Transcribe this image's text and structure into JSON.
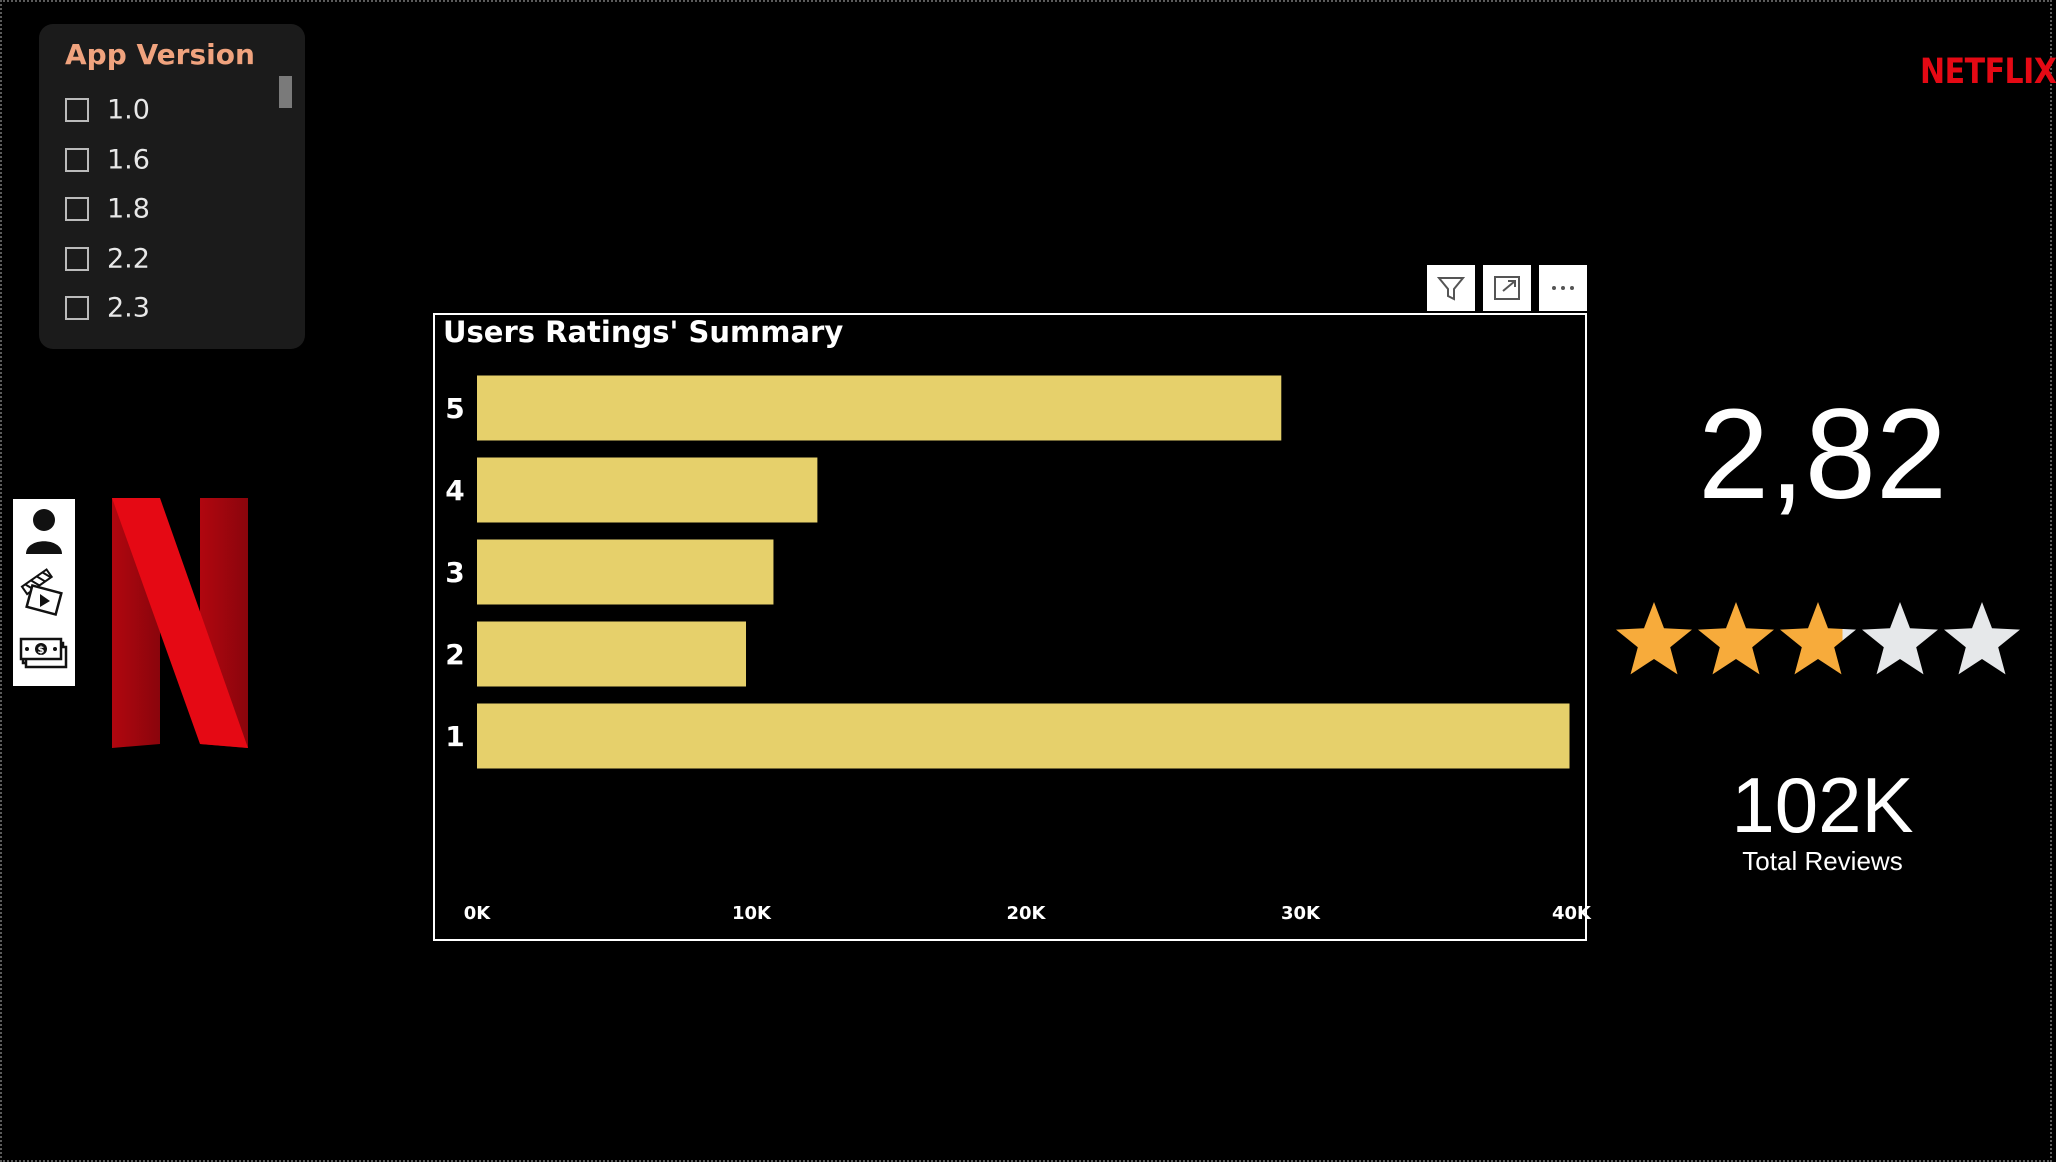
{
  "slicer": {
    "title": "App Version",
    "items": [
      {
        "label": "1.0",
        "checked": false
      },
      {
        "label": "1.6",
        "checked": false
      },
      {
        "label": "1.8",
        "checked": false
      },
      {
        "label": "2.2",
        "checked": false
      },
      {
        "label": "2.3",
        "checked": false
      }
    ]
  },
  "brand": {
    "wordmark": "NETFLIX",
    "color": "#e50914"
  },
  "nav": {
    "icons": [
      "person-icon",
      "clapperboard-icon",
      "money-icon"
    ]
  },
  "chart_toolbar": {
    "icons": [
      "filter-icon",
      "focus-mode-icon",
      "more-options-icon"
    ]
  },
  "chart_data": {
    "type": "bar",
    "orientation": "horizontal",
    "title": "Users Ratings' Summary",
    "categories": [
      "5",
      "4",
      "3",
      "2",
      "1"
    ],
    "values": [
      29300,
      12400,
      10800,
      9800,
      39800
    ],
    "xlim": [
      0,
      40000
    ],
    "xticks": [
      "0K",
      "10K",
      "20K",
      "30K",
      "40K"
    ],
    "xtick_values": [
      0,
      10000,
      20000,
      30000,
      40000
    ],
    "bar_color": "#e6d06b",
    "grid": false,
    "xlabel": "",
    "ylabel": ""
  },
  "kpi": {
    "average_rating": "2,82",
    "rating_value": 2.82,
    "max_rating": 5,
    "star_filled_color": "#f7ab3b",
    "star_empty_color": "#e6e8ea",
    "total_reviews": "102K",
    "total_reviews_label": "Total Reviews"
  }
}
